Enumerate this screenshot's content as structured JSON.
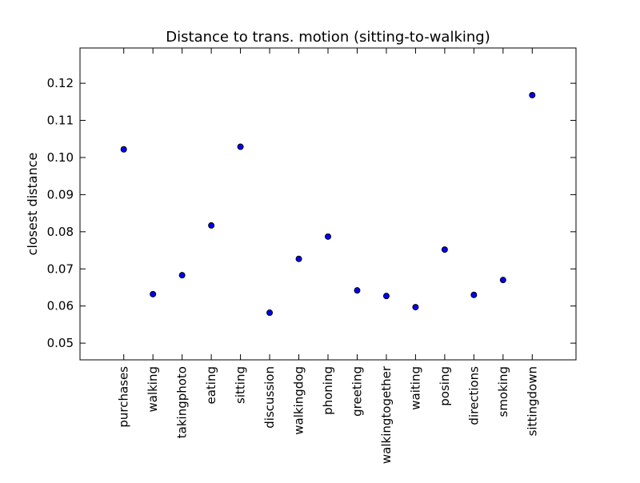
{
  "chart_data": {
    "type": "scatter",
    "title": "Distance to trans. motion (sitting-to-walking)",
    "xlabel": "",
    "ylabel": "closest distance",
    "categories": [
      "purchases",
      "walking",
      "takingphoto",
      "eating",
      "sitting",
      "discussion",
      "walkingdog",
      "phoning",
      "greeting",
      "walkingtogether",
      "waiting",
      "posing",
      "directions",
      "smoking",
      "sittingdown"
    ],
    "series": [
      {
        "values": [
          0.1022,
          0.0632,
          0.0683,
          0.0817,
          0.1029,
          0.0582,
          0.0727,
          0.0787,
          0.0642,
          0.0627,
          0.0597,
          0.0752,
          0.063,
          0.067,
          0.1168
        ]
      }
    ],
    "ylim": [
      0.0455,
      0.1295
    ],
    "yticks": [
      0.05,
      0.06,
      0.07,
      0.08,
      0.09,
      0.1,
      0.11,
      0.12
    ],
    "ytick_labels": [
      "0.05",
      "0.06",
      "0.07",
      "0.08",
      "0.09",
      "0.10",
      "0.11",
      "0.12"
    ],
    "grid": false,
    "legend": "none",
    "colors": {
      "marker_fill": "#0000ff",
      "marker_edge": "#000000",
      "axes": "#000000",
      "background": "#ffffff"
    }
  }
}
